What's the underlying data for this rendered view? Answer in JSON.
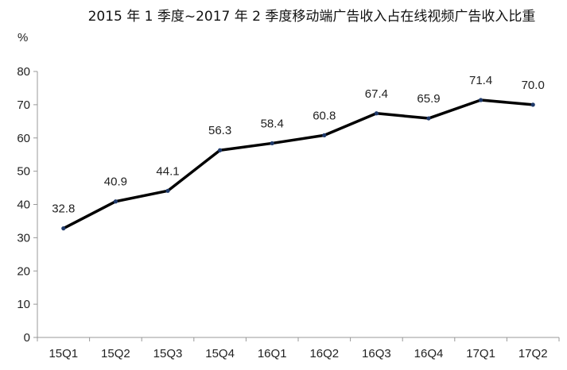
{
  "chart_data": {
    "type": "line",
    "title": "2015 年 1 季度~2017 年 2 季度移动端广告收入占在线视频广告收入比重",
    "ylabel": "%",
    "xlabel": "",
    "categories": [
      "15Q1",
      "15Q2",
      "15Q3",
      "15Q4",
      "16Q1",
      "16Q2",
      "16Q3",
      "16Q4",
      "17Q1",
      "17Q2"
    ],
    "series": [
      {
        "values": [
          32.8,
          40.9,
          44.1,
          56.3,
          58.4,
          60.8,
          67.4,
          65.9,
          71.4,
          70.0
        ]
      }
    ],
    "data_labels": [
      "32.8",
      "40.9",
      "44.1",
      "56.3",
      "58.4",
      "60.8",
      "67.4",
      "65.9",
      "71.4",
      "70.0"
    ],
    "ylim": [
      0,
      80
    ],
    "yticks": [
      0,
      10,
      20,
      30,
      40,
      50,
      60,
      70,
      80
    ],
    "grid": false,
    "legend": "none",
    "colors": {
      "line": "#000000",
      "marker": "#1f3a6b",
      "axis": "#999999"
    }
  }
}
